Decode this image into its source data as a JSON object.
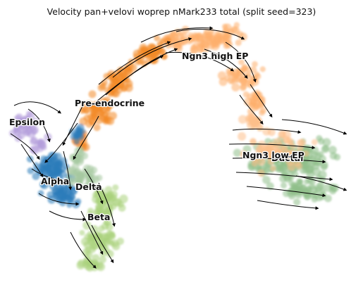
{
  "title": "Velocity pan+velovi woprep nMark233 total (split seed=323)",
  "chart_data": {
    "type": "scatter",
    "subtype": "umap-embedding-with-velocity-streamlines",
    "title": "Velocity pan+velovi woprep nMark233 total (split seed=323)",
    "axes_visible": false,
    "grid": false,
    "legend": "on-data cluster labels",
    "clusters": [
      {
        "name": "Ngn3 high EP",
        "color": "#fdae6b"
      },
      {
        "name": "Pre-endocrine",
        "color": "#f28a28"
      },
      {
        "name": "Epsilon",
        "color": "#b39ddb"
      },
      {
        "name": "Alpha",
        "color": "#2b7bba"
      },
      {
        "name": "Delta",
        "color": "#a6c8a0"
      },
      {
        "name": "Beta",
        "color": "#a9d17c"
      },
      {
        "name": "Ngn3 low EP",
        "color": "#fdc08a"
      },
      {
        "name": "Ductal",
        "color": "#8fbf8a"
      }
    ],
    "streamline_color": "#000000"
  }
}
